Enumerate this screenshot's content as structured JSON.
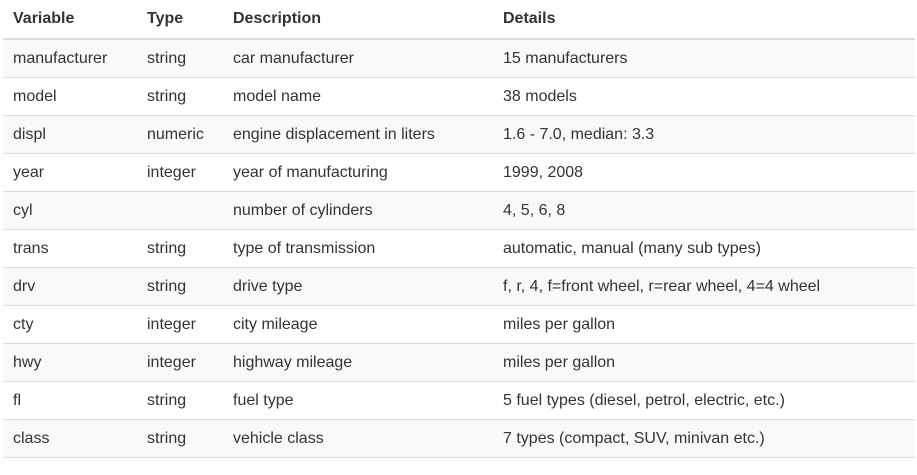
{
  "table": {
    "headers": [
      "Variable",
      "Type",
      "Description",
      "Details"
    ],
    "rows": [
      [
        "manufacturer",
        "string",
        "car manufacturer",
        "15 manufacturers"
      ],
      [
        "model",
        "string",
        "model name",
        "38 models"
      ],
      [
        "displ",
        "numeric",
        "engine displacement in liters",
        "1.6 - 7.0, median: 3.3"
      ],
      [
        "year",
        "integer",
        "year of manufacturing",
        "1999, 2008"
      ],
      [
        "cyl",
        "",
        "number of cylinders",
        "4, 5, 6, 8"
      ],
      [
        "trans",
        "string",
        "type of transmission",
        "automatic, manual (many sub types)"
      ],
      [
        "drv",
        "string",
        "drive type",
        "f, r, 4, f=front wheel, r=rear wheel, 4=4 wheel"
      ],
      [
        "cty",
        "integer",
        "city mileage",
        "miles per gallon"
      ],
      [
        "hwy",
        "integer",
        "highway mileage",
        "miles per gallon"
      ],
      [
        "fl",
        "string",
        "fuel type",
        "5 fuel types (diesel, petrol, electric, etc.)"
      ],
      [
        "class",
        "string",
        "vehicle class",
        "7 types (compact, SUV, minivan etc.)"
      ]
    ]
  }
}
